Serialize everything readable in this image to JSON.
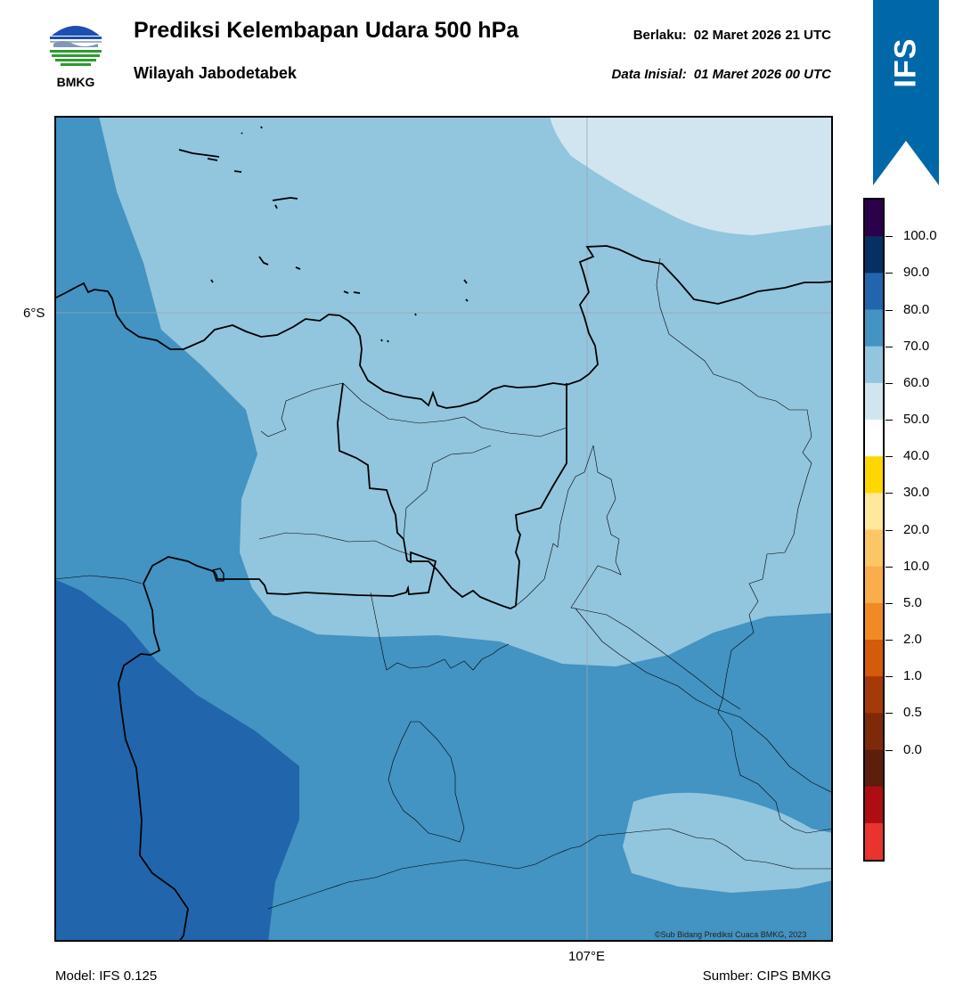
{
  "logo": {
    "text": "BMKG",
    "icon": "bmkg-logo-icon"
  },
  "header": {
    "title": "Prediksi Kelembapan Udara 500 hPa",
    "subtitle": "Wilayah Jabodetabek",
    "valid_label": "Berlaku:",
    "valid_value": "02 Maret 2026 21 UTC",
    "init_label": "Data Inisial:",
    "init_value": "01 Maret 2026 00 UTC"
  },
  "badge": {
    "text": "IFS",
    "color": "#0068a8"
  },
  "map": {
    "lat_label": "6°S",
    "lon_label": "107°E",
    "copyright": "©Sub Bidang Prediksi Cuaca BMKG, 2023",
    "fill_colors": {
      "60_70": "#93c5de",
      "50_60": "#d2e5f0",
      "70_80": "#4393c3",
      "80_90": "#2166ac"
    }
  },
  "footer": {
    "model": "Model: IFS 0.125",
    "source": "Sumber: CIPS BMKG"
  },
  "colorbar": {
    "labels": [
      "100.0",
      "90.0",
      "80.0",
      "70.0",
      "60.0",
      "50.0",
      "40.0",
      "30.0",
      "20.0",
      "10.0",
      "5.0",
      "2.0",
      "1.0",
      "0.5",
      "0.0"
    ],
    "colors_top_to_bottom": [
      "#2d004b",
      "#053061",
      "#2166ac",
      "#4393c3",
      "#92c5de",
      "#d1e5f0",
      "#ffffff",
      "#ffd700",
      "#ffe89b",
      "#fdc665",
      "#f9ae4b",
      "#f08a26",
      "#d45a0c",
      "#a4390a",
      "#7e2a09",
      "#5b1f0b",
      "#b00d12",
      "#e8342c"
    ]
  }
}
